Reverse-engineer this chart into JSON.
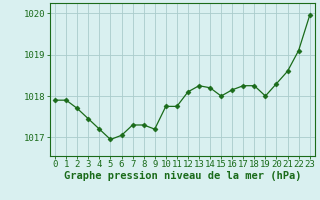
{
  "x": [
    0,
    1,
    2,
    3,
    4,
    5,
    6,
    7,
    8,
    9,
    10,
    11,
    12,
    13,
    14,
    15,
    16,
    17,
    18,
    19,
    20,
    21,
    22,
    23
  ],
  "y": [
    1017.9,
    1017.9,
    1017.7,
    1017.45,
    1017.2,
    1016.95,
    1017.05,
    1017.3,
    1017.3,
    1017.2,
    1017.75,
    1017.75,
    1018.1,
    1018.25,
    1018.2,
    1018.0,
    1018.15,
    1018.25,
    1018.25,
    1018.0,
    1018.3,
    1018.6,
    1019.1,
    1019.95
  ],
  "line_color": "#1a6b1a",
  "marker": "D",
  "marker_size": 2.5,
  "bg_color": "#d9f0f0",
  "grid_color": "#aacccc",
  "axis_color": "#1a6b1a",
  "xlabel": "Graphe pression niveau de la mer (hPa)",
  "xlabel_fontsize": 7.5,
  "tick_fontsize": 6.5,
  "ylabel_ticks": [
    1017,
    1018,
    1019,
    1020
  ],
  "ylim": [
    1016.55,
    1020.25
  ],
  "xlim": [
    -0.5,
    23.5
  ],
  "linewidth": 0.9
}
